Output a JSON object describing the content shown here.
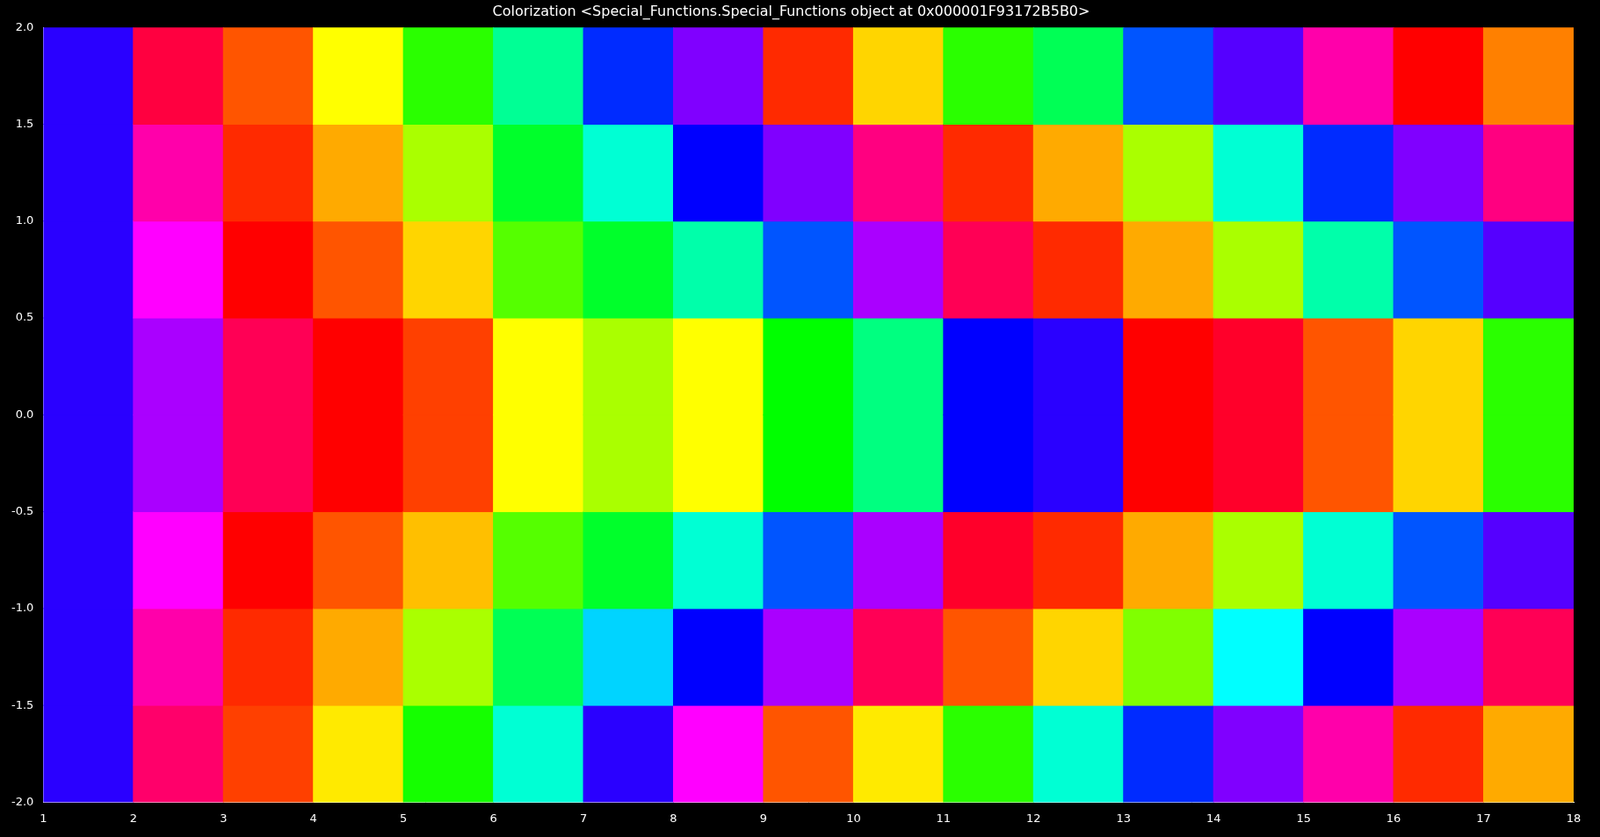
{
  "chart_data": {
    "type": "heatmap",
    "title": "Colorization <Special_Functions.Special_Functions object at 0x000001F93172B5B0>",
    "x_edges": [
      1,
      2,
      3,
      4,
      5,
      6,
      7,
      8,
      9,
      10,
      11,
      12,
      13,
      14,
      15,
      16,
      17,
      18
    ],
    "y_edges": [
      -2,
      -1.5,
      -1,
      -0.5,
      0,
      0.5,
      1,
      1.5,
      2
    ],
    "cells": [
      [
        250,
        250,
        250,
        250,
        250,
        250,
        250,
        250
      ],
      [
        335,
        320,
        300,
        280,
        280,
        300,
        320,
        345
      ],
      [
        15,
        10,
        0,
        340,
        340,
        0,
        10,
        20
      ],
      [
        55,
        40,
        20,
        0,
        0,
        20,
        40,
        60
      ],
      [
        115,
        80,
        45,
        15,
        15,
        50,
        80,
        110
      ],
      [
        170,
        140,
        100,
        60,
        60,
        100,
        130,
        155
      ],
      [
        250,
        190,
        130,
        80,
        80,
        130,
        170,
        230
      ],
      [
        300,
        240,
        170,
        60,
        60,
        160,
        240,
        270
      ],
      [
        20,
        280,
        220,
        120,
        120,
        220,
        270,
        10
      ],
      [
        55,
        340,
        280,
        150,
        150,
        280,
        330,
        50
      ],
      [
        110,
        20,
        350,
        240,
        240,
        340,
        10,
        110
      ],
      [
        170,
        50,
        10,
        250,
        250,
        10,
        40,
        140
      ],
      [
        230,
        90,
        40,
        0,
        0,
        40,
        80,
        220
      ],
      [
        270,
        180,
        80,
        350,
        350,
        80,
        170,
        260
      ],
      [
        320,
        240,
        170,
        20,
        20,
        160,
        230,
        320
      ],
      [
        10,
        280,
        220,
        50,
        50,
        220,
        270,
        0
      ],
      [
        40,
        340,
        260,
        110,
        110,
        260,
        330,
        30
      ]
    ],
    "xlim": [
      1,
      18
    ],
    "xticks": [
      1,
      2,
      3,
      4,
      5,
      6,
      7,
      8,
      9,
      10,
      11,
      12,
      13,
      14,
      15,
      16,
      17,
      18
    ],
    "ylim": [
      -2,
      2
    ],
    "yticks": [
      {
        "value": -2,
        "label": "-2.0"
      },
      -1.5,
      {
        "value": -1,
        "label": "-1.0"
      },
      -0.5,
      {
        "value": 0,
        "label": "0.0"
      },
      0.5,
      {
        "value": 1,
        "label": "1.0"
      },
      1.5,
      {
        "value": 2,
        "label": "2.0"
      }
    ],
    "grid": false
  }
}
